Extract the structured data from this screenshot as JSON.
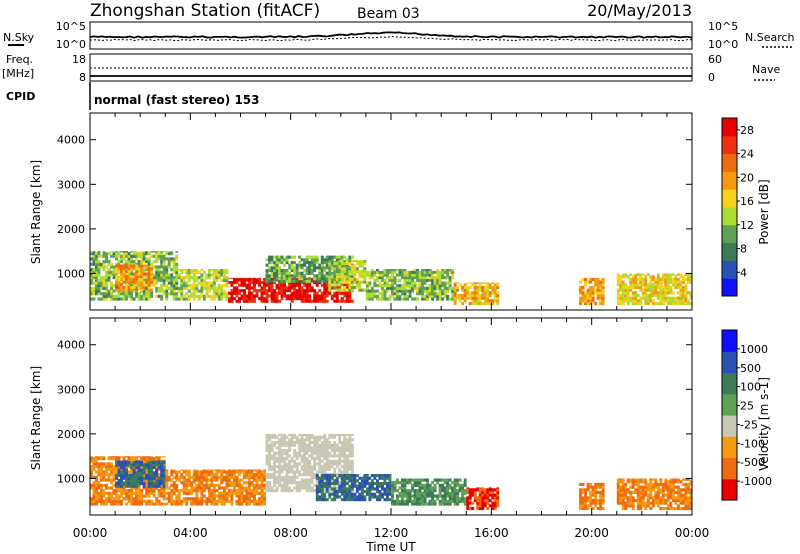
{
  "header": {
    "station": "Zhongshan Station (fitACF)",
    "beam": "Beam 03",
    "date": "20/May/2013"
  },
  "top_panels": {
    "nsky_label": "N.Sky",
    "nsearch_label": "N.Search",
    "freq_label": "Freq.",
    "freq_unit": "[MHz]",
    "nave_label": "Nave",
    "cpid_label": "CPID",
    "cpid_value": "normal (fast stereo) 153",
    "noise_ticks_left": [
      "10^5",
      "10^0"
    ],
    "noise_ticks_right": [
      "10^5",
      "10^0"
    ],
    "freq_ticks": [
      "18",
      "8"
    ],
    "nave_ticks": [
      "60",
      "0"
    ]
  },
  "time_axis": {
    "title": "Time UT",
    "ticks": [
      "00:00",
      "04:00",
      "08:00",
      "12:00",
      "16:00",
      "20:00",
      "00:00"
    ]
  },
  "colors": {
    "power": [
      "#1010ff",
      "#2a52b4",
      "#3c7a5a",
      "#5fa055",
      "#aadc32",
      "#f4d21e",
      "#f59a10",
      "#f06a10",
      "#ee3010",
      "#e60000"
    ],
    "velocity": [
      "#e60000",
      "#f06a10",
      "#f59a10",
      "#c8c8b4",
      "#5fa055",
      "#3c7a5a",
      "#2a52b4",
      "#1010ff"
    ]
  },
  "chart_data": [
    {
      "type": "heatmap",
      "name": "power",
      "ylabel": "Slant Range [km]",
      "yticks": [
        "1000",
        "2000",
        "3000",
        "4000"
      ],
      "ylim": [
        180,
        4600
      ],
      "xlim_hours": [
        0,
        24
      ],
      "colorbar": {
        "label": "Power [dB]",
        "ticks": [
          "4",
          "8",
          "12",
          "16",
          "20",
          "24",
          "28"
        ],
        "range": [
          0,
          30
        ]
      },
      "regions": [
        {
          "t": [
            0.0,
            3.5
          ],
          "r": [
            400,
            1500
          ],
          "v": 12
        },
        {
          "t": [
            1.0,
            2.5
          ],
          "r": [
            600,
            1200
          ],
          "v": 20
        },
        {
          "t": [
            3.5,
            5.5
          ],
          "r": [
            400,
            1100
          ],
          "v": 14
        },
        {
          "t": [
            5.5,
            10.5
          ],
          "r": [
            350,
            900
          ],
          "v": 28
        },
        {
          "t": [
            7.0,
            10.5
          ],
          "r": [
            800,
            1400
          ],
          "v": 10
        },
        {
          "t": [
            9.5,
            11.0
          ],
          "r": [
            600,
            1300
          ],
          "v": 14
        },
        {
          "t": [
            11.0,
            14.5
          ],
          "r": [
            400,
            1100
          ],
          "v": 12
        },
        {
          "t": [
            14.5,
            16.3
          ],
          "r": [
            300,
            800
          ],
          "v": 18
        },
        {
          "t": [
            19.5,
            20.5
          ],
          "r": [
            300,
            900
          ],
          "v": 20
        },
        {
          "t": [
            21.0,
            24.0
          ],
          "r": [
            300,
            1000
          ],
          "v": 16
        }
      ]
    },
    {
      "type": "heatmap",
      "name": "velocity",
      "ylabel": "Slant Range [km]",
      "yticks": [
        "1000",
        "2000",
        "3000",
        "4000"
      ],
      "ylim": [
        180,
        4600
      ],
      "xlim_hours": [
        0,
        24
      ],
      "colorbar": {
        "label": "Velocity [m s-1]",
        "ticks": [
          "1000",
          "500",
          "100",
          "25",
          "-25",
          "-100",
          "-500",
          "-1000"
        ]
      },
      "regions": [
        {
          "t": [
            0.0,
            3.0
          ],
          "r": [
            400,
            1500
          ],
          "v": -100
        },
        {
          "t": [
            1.0,
            3.0
          ],
          "r": [
            800,
            1400
          ],
          "v": 500
        },
        {
          "t": [
            3.0,
            7.0
          ],
          "r": [
            400,
            1200
          ],
          "v": -100
        },
        {
          "t": [
            7.0,
            10.5
          ],
          "r": [
            700,
            2000
          ],
          "v": 0
        },
        {
          "t": [
            9.0,
            12.0
          ],
          "r": [
            500,
            1100
          ],
          "v": 500
        },
        {
          "t": [
            12.0,
            15.0
          ],
          "r": [
            400,
            1000
          ],
          "v": 100
        },
        {
          "t": [
            15.0,
            16.3
          ],
          "r": [
            300,
            800
          ],
          "v": -500
        },
        {
          "t": [
            19.5,
            20.5
          ],
          "r": [
            300,
            900
          ],
          "v": -100
        },
        {
          "t": [
            21.0,
            24.0
          ],
          "r": [
            300,
            1000
          ],
          "v": -100
        }
      ]
    }
  ]
}
